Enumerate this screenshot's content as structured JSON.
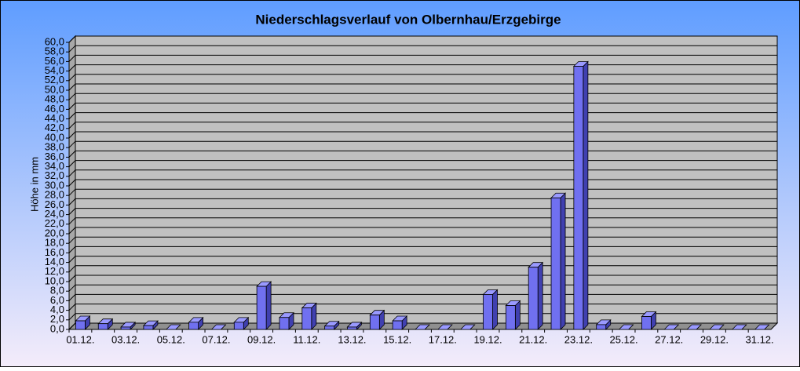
{
  "chart_data": {
    "type": "bar",
    "title": "Niederschlagsverlauf von Olbernhau/Erzgebirge",
    "y_label": "Höhe in mm",
    "categories": [
      "01.12.",
      null,
      "03.12.",
      null,
      "05.12.",
      null,
      "07.12.",
      null,
      "09.12.",
      null,
      "11.12.",
      null,
      "13.12.",
      null,
      "15.12.",
      null,
      "17.12.",
      null,
      "19.12.",
      null,
      "21.12.",
      null,
      "23.12.",
      null,
      "25.12.",
      null,
      "27.12.",
      null,
      "29.12.",
      null,
      "31.12."
    ],
    "values": [
      1.8,
      1.2,
      0.5,
      0.8,
      0,
      1.5,
      0,
      1.5,
      9.0,
      2.5,
      4.5,
      0.7,
      0.5,
      3.0,
      1.8,
      0,
      0,
      0,
      7.3,
      5.0,
      13.0,
      27.5,
      55.0,
      1.0,
      0,
      2.7,
      0,
      0,
      0,
      0,
      0
    ],
    "color": "#7070f0",
    "ylim": [
      0,
      60
    ],
    "yticks": [
      {
        "value": 0,
        "label": "0,0"
      },
      {
        "value": 2,
        "label": "2,0"
      },
      {
        "value": 4,
        "label": "4,0"
      },
      {
        "value": 6,
        "label": "6,0"
      },
      {
        "value": 8,
        "label": "8,0"
      },
      {
        "value": 10,
        "label": "10,0"
      },
      {
        "value": 12,
        "label": "12,0"
      },
      {
        "value": 14,
        "label": "14,0"
      },
      {
        "value": 16,
        "label": "16,0"
      },
      {
        "value": 18,
        "label": "18,0"
      },
      {
        "value": 20,
        "label": "20,0"
      },
      {
        "value": 22,
        "label": "22,0"
      },
      {
        "value": 24,
        "label": "24,0"
      },
      {
        "value": 26,
        "label": "26,0"
      },
      {
        "value": 28,
        "label": "28,0"
      },
      {
        "value": 30,
        "label": "30,0"
      },
      {
        "value": 32,
        "label": "32,0"
      },
      {
        "value": 34,
        "label": "34,0"
      },
      {
        "value": 36,
        "label": "36,0"
      },
      {
        "value": 38,
        "label": "38,0"
      },
      {
        "value": 40,
        "label": "40,0"
      },
      {
        "value": 42,
        "label": "42,0"
      },
      {
        "value": 44,
        "label": "44,0"
      },
      {
        "value": 46,
        "label": "46,0"
      },
      {
        "value": 48,
        "label": "48,0"
      },
      {
        "value": 50,
        "label": "50,0"
      },
      {
        "value": 52,
        "label": "52,0"
      },
      {
        "value": 54,
        "label": "54,0"
      },
      {
        "value": 56,
        "label": "56,0"
      },
      {
        "value": 58,
        "label": "58,0"
      },
      {
        "value": 60,
        "label": "60,0"
      }
    ],
    "grid": true
  }
}
